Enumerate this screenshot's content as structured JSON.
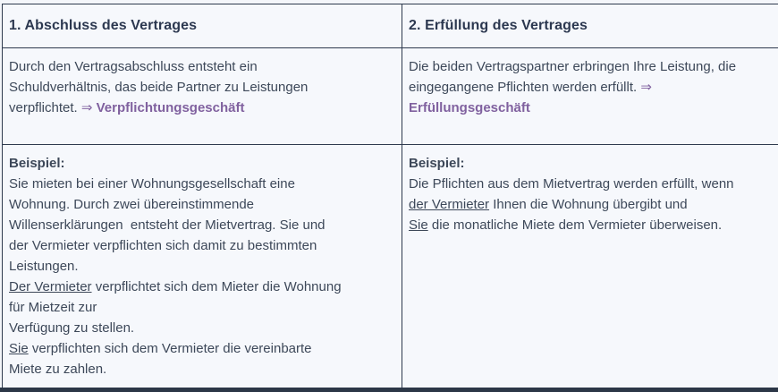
{
  "colors": {
    "accent_purple": "#80619f",
    "body_text": "#3d4859",
    "header_text": "#2c3850",
    "border": "#2e3a4e",
    "cell_background": "#f6f8fc",
    "page_background": "#f4f6fa",
    "bottom_bar": "#2c3747"
  },
  "table": {
    "columns": [
      {
        "header": "1. Abschluss des Vertrages",
        "description_lines": [
          [
            {
              "t": "Durch den Vertragsabschluss entsteht ein",
              "s": "n"
            }
          ],
          [
            {
              "t": "Schuldverhältnis, das beide Partner zu Leistungen",
              "s": "n"
            }
          ],
          [
            {
              "t": "verpflichtet. ",
              "s": "n"
            },
            {
              "t": "⇒ ",
              "s": "a"
            },
            {
              "t": "Verpflichtungsgeschäft",
              "s": "p"
            }
          ]
        ],
        "example_lines": [
          [
            {
              "t": "Beispiel:",
              "s": "b"
            }
          ],
          [
            {
              "t": "Sie mieten bei einer Wohnungsgesellschaft eine",
              "s": "n"
            }
          ],
          [
            {
              "t": "Wohnung. Durch zwei übereinstimmende",
              "s": "n"
            }
          ],
          [
            {
              "t": "Willenserklärungen  entsteht der Mietvertrag. Sie und",
              "s": "n"
            }
          ],
          [
            {
              "t": "der Vermieter verpflichten sich damit zu bestimmten",
              "s": "n"
            }
          ],
          [
            {
              "t": "Leistungen.",
              "s": "n"
            }
          ],
          [
            {
              "t": "Der Vermieter",
              "s": "u"
            },
            {
              "t": " verpflichtet sich dem Mieter die Wohnung",
              "s": "n"
            }
          ],
          [
            {
              "t": "für Mietzeit zur",
              "s": "n"
            }
          ],
          [
            {
              "t": "Verfügung zu stellen.",
              "s": "n"
            }
          ],
          [
            {
              "t": "Sie",
              "s": "u"
            },
            {
              "t": " verpflichten sich dem Vermieter die vereinbarte",
              "s": "n"
            }
          ],
          [
            {
              "t": "Miete zu zahlen.",
              "s": "n"
            }
          ]
        ]
      },
      {
        "header": "2. Erfüllung des Vertrages",
        "description_lines": [
          [
            {
              "t": "Die beiden Vertragspartner erbringen Ihre Leistung, die",
              "s": "n"
            }
          ],
          [
            {
              "t": "eingegangene Pflichten werden erfüllt. ",
              "s": "n"
            },
            {
              "t": "⇒",
              "s": "a"
            }
          ],
          [
            {
              "t": "Erfüllungsgeschäft",
              "s": "p"
            }
          ]
        ],
        "example_lines": [
          [
            {
              "t": "Beispiel:",
              "s": "b"
            }
          ],
          [
            {
              "t": "Die Pflichten aus dem Mietvertrag werden erfüllt, wenn",
              "s": "n"
            }
          ],
          [
            {
              "t": "der Vermieter",
              "s": "u"
            },
            {
              "t": " Ihnen die Wohnung übergibt und",
              "s": "n"
            }
          ],
          [
            {
              "t": "Sie",
              "s": "u"
            },
            {
              "t": " die monatliche Miete dem Vermieter überweisen.",
              "s": "n"
            }
          ]
        ]
      }
    ]
  }
}
